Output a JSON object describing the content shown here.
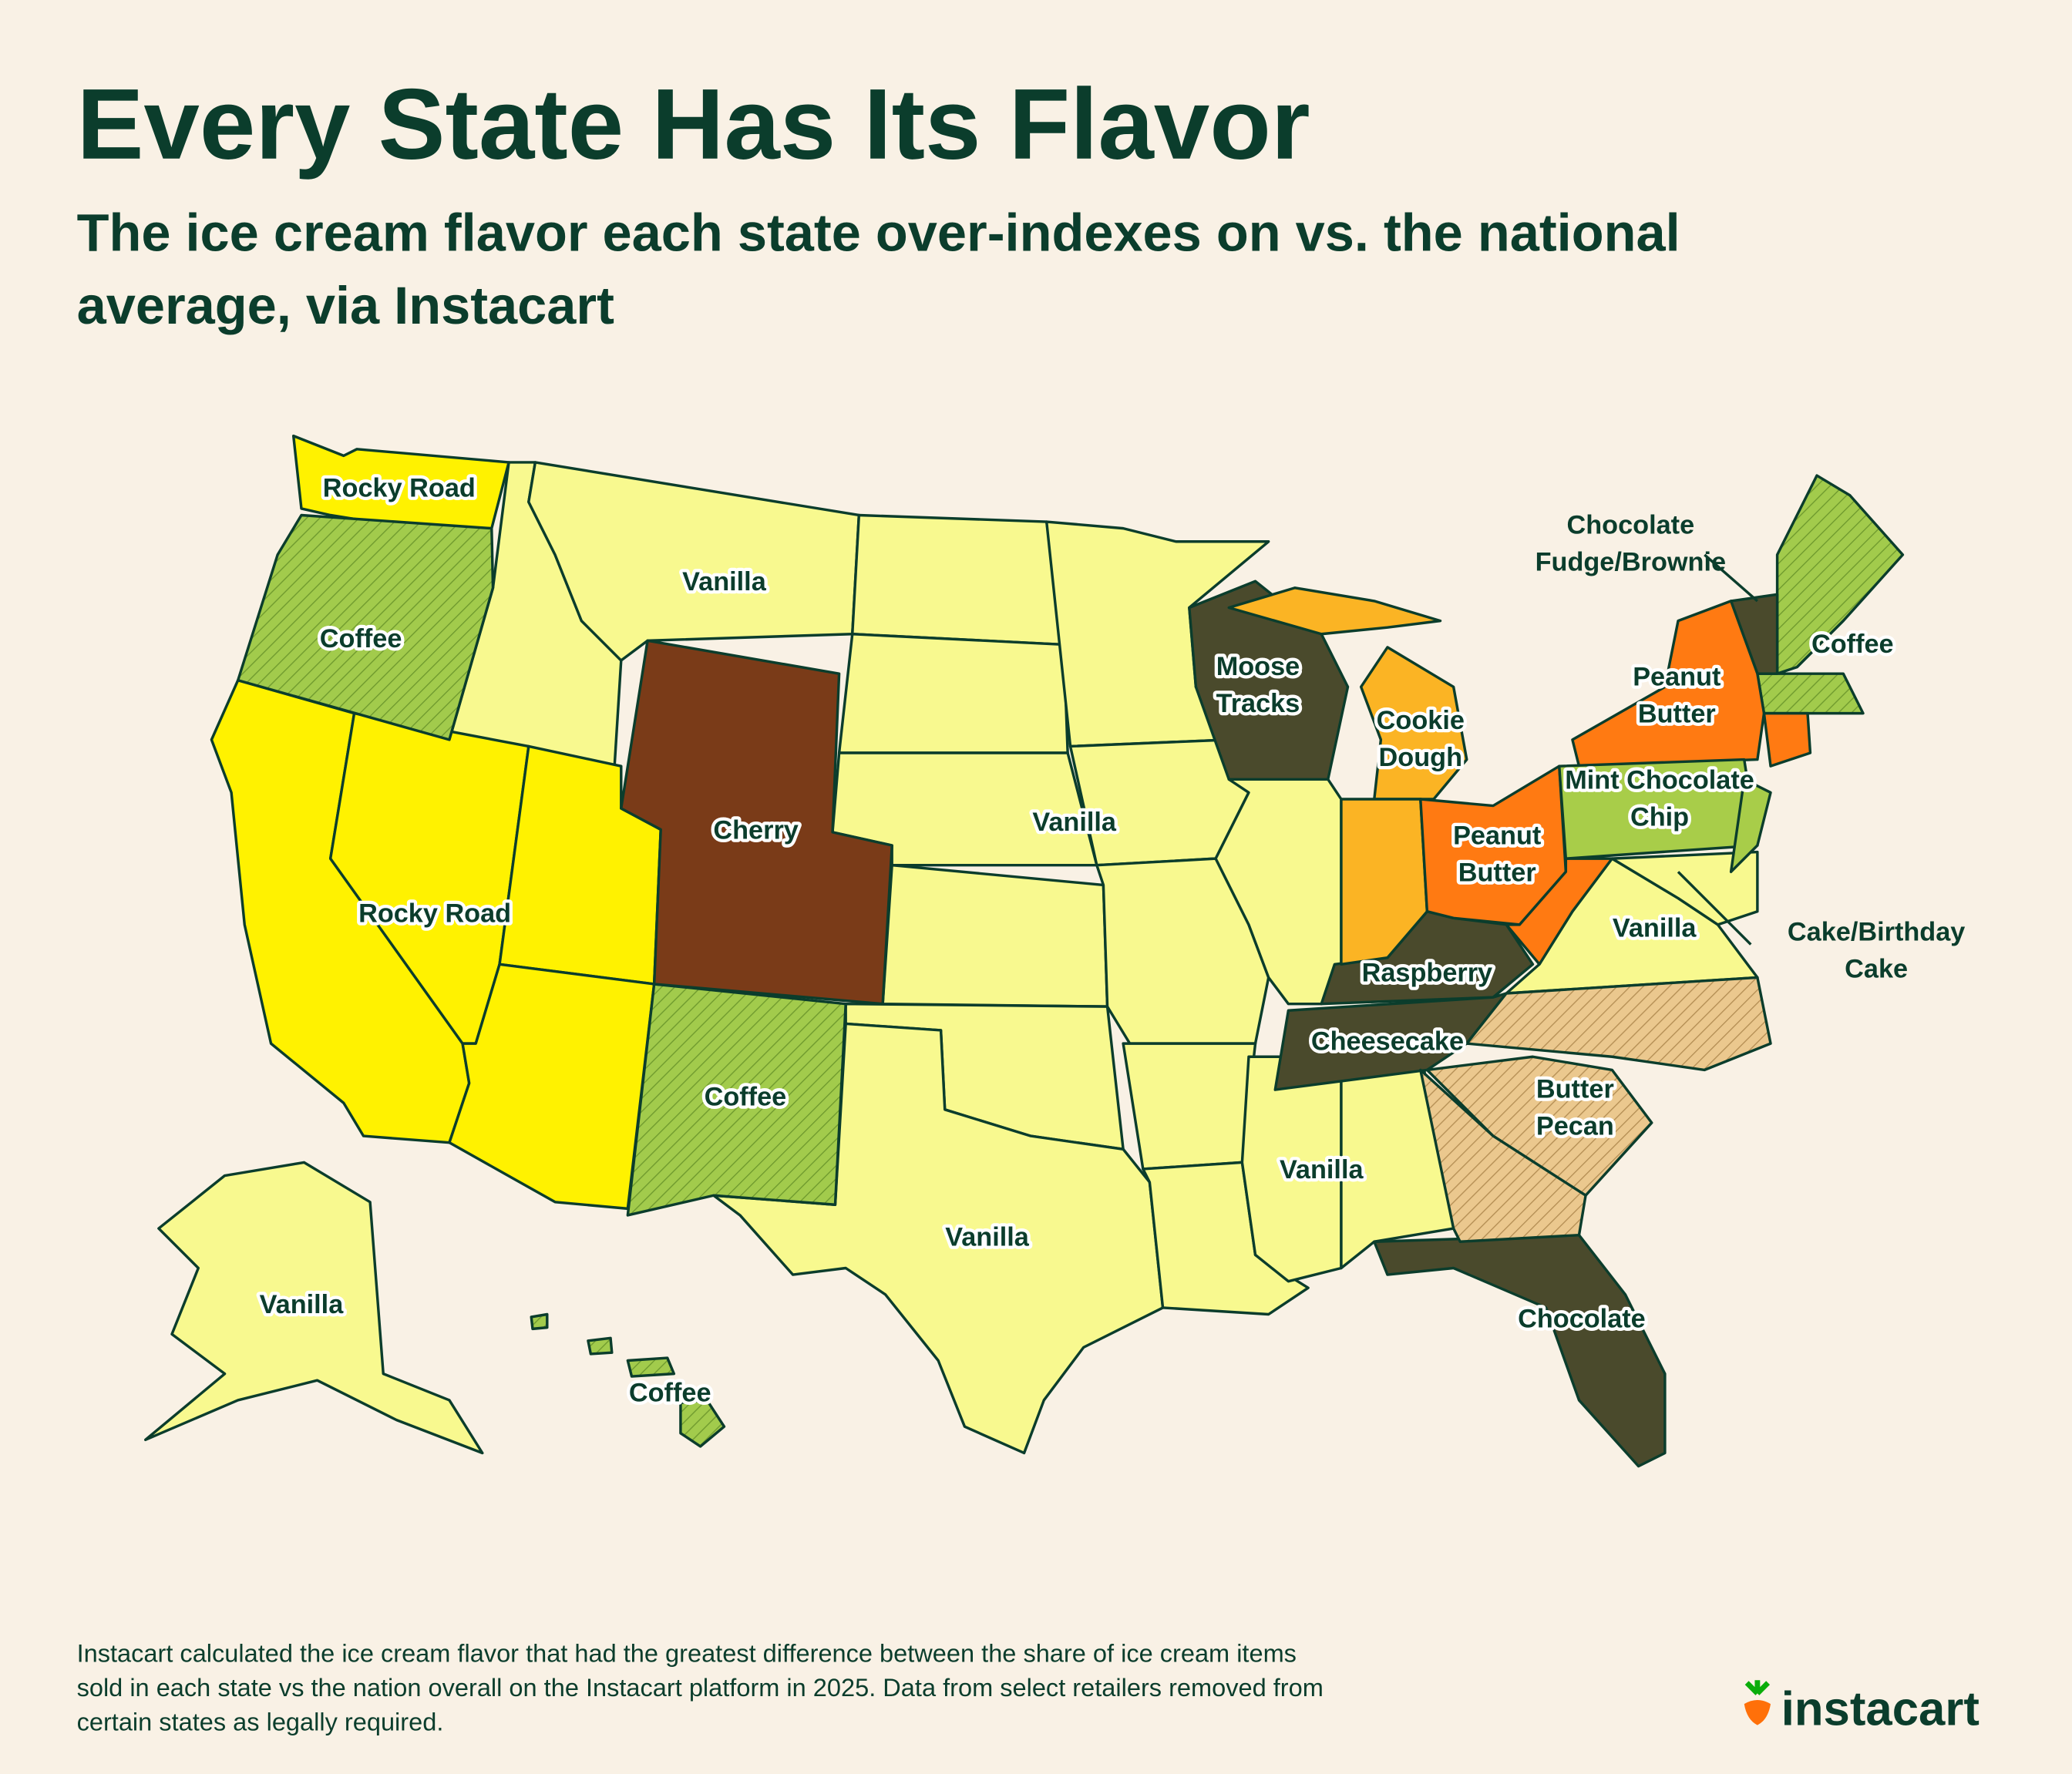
{
  "header": {
    "title": "Every State Has Its Flavor",
    "subtitle": [
      "The ice cream flavor each state over-indexes on vs. the national",
      "average, via Instacart"
    ]
  },
  "map_labels": [
    {
      "lines": [
        "Rocky Road"
      ]
    },
    {
      "lines": [
        "Coffee"
      ]
    },
    {
      "lines": [
        "Vanilla"
      ]
    },
    {
      "lines": [
        "Cherry"
      ]
    },
    {
      "lines": [
        "Vanilla"
      ]
    },
    {
      "lines": [
        "Rocky Road"
      ]
    },
    {
      "lines": [
        "Coffee"
      ]
    },
    {
      "lines": [
        "Vanilla"
      ]
    },
    {
      "lines": [
        "Vanilla"
      ]
    },
    {
      "lines": [
        "Coffee"
      ]
    },
    {
      "lines": [
        "Moose",
        "Tracks"
      ]
    },
    {
      "lines": [
        "Cookie",
        "Dough"
      ]
    },
    {
      "lines": [
        "Vanilla"
      ]
    },
    {
      "lines": [
        "Peanut",
        "Butter"
      ]
    },
    {
      "lines": [
        "Raspberry"
      ]
    },
    {
      "lines": [
        "Cheesecake"
      ]
    },
    {
      "lines": [
        "Vanilla"
      ]
    },
    {
      "lines": [
        "Butter",
        "Pecan"
      ]
    },
    {
      "lines": [
        "Chocolate"
      ]
    },
    {
      "lines": [
        "Peanut",
        "Butter"
      ]
    },
    {
      "lines": [
        "Mint Chocolate",
        "Chip"
      ]
    },
    {
      "lines": [
        "Coffee"
      ]
    }
  ],
  "callouts": [
    {
      "lines": [
        "Chocolate",
        "Fudge/Brownie"
      ]
    },
    {
      "lines": [
        "Cake/Birthday",
        "Cake"
      ]
    }
  ],
  "footnote": [
    "Instacart calculated the ice cream flavor that had the greatest difference between the share of ice cream items",
    "sold in each state vs the nation overall on the Instacart platform in 2025. Data from select retailers removed from",
    "certain states as legally required."
  ],
  "logo": "instacart"
}
